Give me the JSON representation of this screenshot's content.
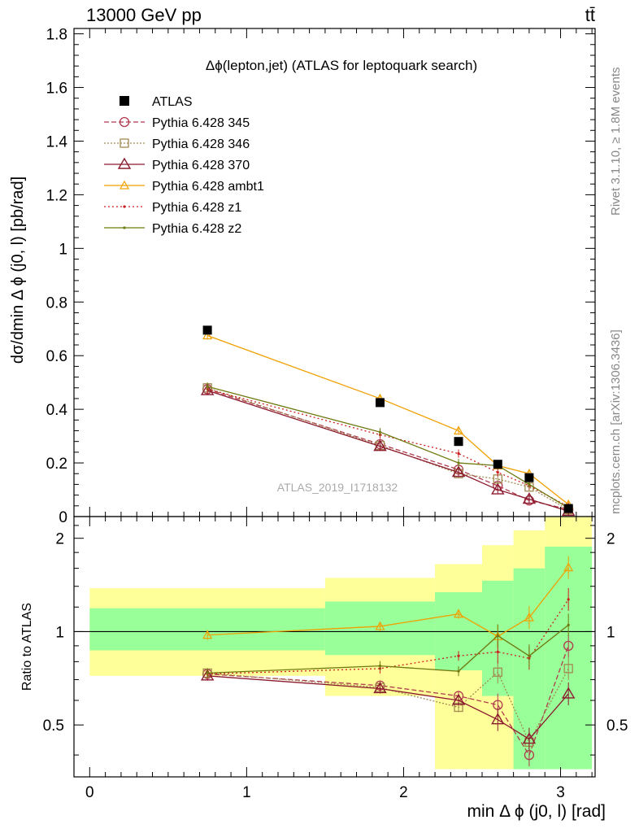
{
  "header": {
    "left": "13000 GeV pp",
    "right": "tt̄"
  },
  "side_labels": {
    "rivet": "Rivet 3.1.10, ≥ 1.8M events",
    "mcplots": "mcplots.cern.ch [arXiv:1306.3436]"
  },
  "watermark": "ATLAS_2019_I1718132",
  "colors": {
    "data": "#000000",
    "p345": "#b03a4e",
    "p346": "#a08a50",
    "p370": "#8b1a2e",
    "ambt1": "#f0a000",
    "z1": "#cc2020",
    "z2": "#6f7a10",
    "band_inner": "#99ff99",
    "band_outer": "#ffff99"
  },
  "chart_data": [
    {
      "type": "line",
      "title": "Δϕ(lepton,jet) (ATLAS for leptoquark search)",
      "ylabel": "dσ/dmin Δ ϕ (j0, l) [pb/rad]",
      "xlim": [
        -0.1,
        3.22
      ],
      "ylim": [
        0,
        1.82
      ],
      "yticks": [
        "0",
        "0.2",
        "0.4",
        "0.6",
        "0.8",
        "1",
        "1.2",
        "1.4",
        "1.6",
        "1.8"
      ],
      "legend_position": "top-left",
      "data": {
        "name": "ATLAS",
        "x": [
          0.75,
          1.85,
          2.35,
          2.6,
          2.8,
          3.05
        ],
        "y": [
          0.695,
          0.425,
          0.28,
          0.195,
          0.145,
          0.03
        ]
      },
      "series": [
        {
          "name": "Pythia 6.428 345",
          "key": "p345",
          "marker": "circle",
          "dash": "6,3",
          "x": [
            0.75,
            1.85,
            2.35,
            2.6,
            2.8,
            3.05
          ],
          "y": [
            0.475,
            0.27,
            0.175,
            0.115,
            0.06,
            0.027
          ]
        },
        {
          "name": "Pythia 6.428 346",
          "key": "p346",
          "marker": "square",
          "dash": "2,2",
          "x": [
            0.75,
            1.85,
            2.35,
            2.6,
            2.8,
            3.05
          ],
          "y": [
            0.48,
            0.265,
            0.16,
            0.14,
            0.11,
            0.025
          ]
        },
        {
          "name": "Pythia 6.428 370",
          "key": "p370",
          "marker": "triangle",
          "dash": "",
          "x": [
            0.75,
            1.85,
            2.35,
            2.6,
            2.8,
            3.05
          ],
          "y": [
            0.47,
            0.262,
            0.165,
            0.1,
            0.065,
            0.02
          ]
        },
        {
          "name": "Pythia 6.428 ambt1",
          "key": "ambt1",
          "marker": "triangle-small",
          "dash": "",
          "x": [
            0.75,
            1.85,
            2.35,
            2.6,
            2.8,
            3.05
          ],
          "y": [
            0.675,
            0.44,
            0.32,
            0.19,
            0.16,
            0.045
          ]
        },
        {
          "name": "Pythia 6.428 z1",
          "key": "z1",
          "marker": "dot",
          "dash": "2,3",
          "x": [
            0.75,
            1.85,
            2.35,
            2.6,
            2.8,
            3.05
          ],
          "y": [
            0.475,
            0.305,
            0.235,
            0.165,
            0.115,
            0.037
          ]
        },
        {
          "name": "Pythia 6.428 z2",
          "key": "z2",
          "marker": "dot",
          "dash": "",
          "x": [
            0.75,
            1.85,
            2.35,
            2.6,
            2.8,
            3.05
          ],
          "y": [
            0.485,
            0.315,
            0.2,
            0.19,
            0.12,
            0.032
          ]
        }
      ]
    },
    {
      "type": "line",
      "ylabel": "Ratio to ATLAS",
      "xlabel": "min Δ ϕ (j0, l) [rad]",
      "xlim": [
        -0.1,
        3.22
      ],
      "ylim": [
        0.34,
        2.35
      ],
      "xticks": [
        "0",
        "1",
        "2",
        "3"
      ],
      "yticks": [
        "0.5",
        "1",
        "2"
      ],
      "reference_line": 1,
      "bands": [
        {
          "x0": 0.0,
          "x1": 1.5,
          "inner": [
            0.87,
            1.19
          ],
          "outer": [
            0.72,
            1.38
          ]
        },
        {
          "x0": 1.5,
          "x1": 2.2,
          "inner": [
            0.84,
            1.25
          ],
          "outer": [
            0.62,
            1.49
          ]
        },
        {
          "x0": 2.2,
          "x1": 2.5,
          "inner": [
            0.75,
            1.34
          ],
          "outer": [
            0.36,
            1.65
          ]
        },
        {
          "x0": 2.5,
          "x1": 2.7,
          "inner": [
            0.62,
            1.46
          ],
          "outer": [
            0.36,
            1.9
          ]
        },
        {
          "x0": 2.7,
          "x1": 2.9,
          "inner": [
            0.36,
            1.6
          ],
          "outer": [
            0.36,
            2.12
          ]
        },
        {
          "x0": 2.9,
          "x1": 3.2,
          "inner": [
            0.36,
            1.88
          ],
          "outer": [
            0.36,
            2.35
          ]
        }
      ],
      "series": [
        {
          "key": "p345",
          "x": [
            0.75,
            1.85,
            2.35,
            2.6,
            2.8,
            3.05
          ],
          "y": [
            0.73,
            0.67,
            0.62,
            0.58,
            0.4,
            0.9
          ]
        },
        {
          "key": "p346",
          "x": [
            0.75,
            1.85,
            2.35,
            2.6,
            2.8,
            3.05
          ],
          "y": [
            0.735,
            0.66,
            0.57,
            0.74,
            0.44,
            0.76
          ]
        },
        {
          "key": "p370",
          "x": [
            0.75,
            1.85,
            2.35,
            2.6,
            2.8,
            3.05
          ],
          "y": [
            0.72,
            0.655,
            0.6,
            0.52,
            0.45,
            0.63
          ]
        },
        {
          "key": "ambt1",
          "x": [
            0.75,
            1.85,
            2.35,
            2.6,
            2.8,
            3.05
          ],
          "y": [
            0.975,
            1.04,
            1.14,
            0.965,
            1.11,
            1.61
          ]
        },
        {
          "key": "z1",
          "x": [
            0.75,
            1.85,
            2.35,
            2.6,
            2.8,
            3.05
          ],
          "y": [
            0.73,
            0.76,
            0.835,
            0.86,
            0.82,
            1.27
          ]
        },
        {
          "key": "z2",
          "x": [
            0.75,
            1.85,
            2.35,
            2.6,
            2.8,
            3.05
          ],
          "y": [
            0.735,
            0.775,
            0.745,
            0.97,
            0.835,
            1.05
          ]
        }
      ]
    }
  ]
}
